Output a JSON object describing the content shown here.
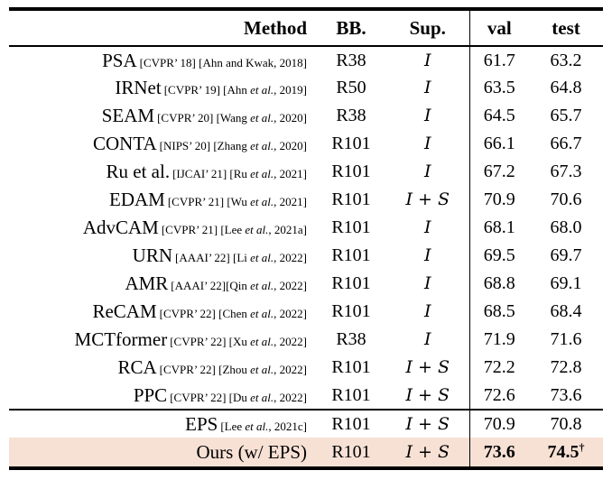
{
  "header": {
    "method": "Method",
    "bb": "BB.",
    "sup": "Sup.",
    "val": "val",
    "test": "test"
  },
  "colors": {
    "highlight_row_bg": "#f7e1d5",
    "rule": "#000000",
    "text": "#000000"
  },
  "table": {
    "sections": [
      {
        "rows": [
          {
            "method": "PSA",
            "cite": [
              {
                "text": "[CVPR’ 18] [Ahn and Kwak, 2018]",
                "italic": false
              }
            ],
            "bb": "R38",
            "sup": "I",
            "val": "61.7",
            "test": "63.2"
          },
          {
            "method": "IRNet",
            "cite": [
              {
                "text": "[CVPR’ 19] [Ahn ",
                "italic": false
              },
              {
                "text": "et al.",
                "italic": true
              },
              {
                "text": ", 2019]",
                "italic": false
              }
            ],
            "bb": "R50",
            "sup": "I",
            "val": "63.5",
            "test": "64.8"
          },
          {
            "method": "SEAM",
            "cite": [
              {
                "text": "[CVPR’ 20] [Wang ",
                "italic": false
              },
              {
                "text": "et al.",
                "italic": true
              },
              {
                "text": ", 2020]",
                "italic": false
              }
            ],
            "bb": "R38",
            "sup": "I",
            "val": "64.5",
            "test": "65.7"
          },
          {
            "method": "CONTA",
            "cite": [
              {
                "text": "[NIPS’ 20] [Zhang ",
                "italic": false
              },
              {
                "text": "et al.",
                "italic": true
              },
              {
                "text": ", 2020]",
                "italic": false
              }
            ],
            "bb": "R101",
            "sup": "I",
            "val": "66.1",
            "test": "66.7"
          },
          {
            "method": "Ru et al.",
            "cite": [
              {
                "text": "[IJCAI’ 21] [Ru ",
                "italic": false
              },
              {
                "text": "et al.",
                "italic": true
              },
              {
                "text": ", 2021]",
                "italic": false
              }
            ],
            "bb": "R101",
            "sup": "I",
            "val": "67.2",
            "test": "67.3"
          },
          {
            "method": "EDAM",
            "cite": [
              {
                "text": "[CVPR’ 21] [Wu ",
                "italic": false
              },
              {
                "text": "et al.",
                "italic": true
              },
              {
                "text": ", 2021]",
                "italic": false
              }
            ],
            "bb": "R101",
            "sup": "I + S",
            "val": "70.9",
            "test": "70.6"
          },
          {
            "method": "AdvCAM",
            "cite": [
              {
                "text": "[CVPR’ 21] [Lee ",
                "italic": false
              },
              {
                "text": "et al.",
                "italic": true
              },
              {
                "text": ", 2021a]",
                "italic": false
              }
            ],
            "bb": "R101",
            "sup": "I",
            "val": "68.1",
            "test": "68.0"
          },
          {
            "method": "URN",
            "cite": [
              {
                "text": "[AAAI’ 22] [Li ",
                "italic": false
              },
              {
                "text": "et al.",
                "italic": true
              },
              {
                "text": ", 2022]",
                "italic": false
              }
            ],
            "bb": "R101",
            "sup": "I",
            "val": "69.5",
            "test": "69.7"
          },
          {
            "method": "AMR",
            "cite": [
              {
                "text": "[AAAI’ 22][Qin ",
                "italic": false
              },
              {
                "text": "et al.",
                "italic": true
              },
              {
                "text": ", 2022]",
                "italic": false
              }
            ],
            "bb": "R101",
            "sup": "I",
            "val": "68.8",
            "test": "69.1"
          },
          {
            "method": "ReCAM",
            "cite": [
              {
                "text": "[CVPR’ 22] [Chen ",
                "italic": false
              },
              {
                "text": "et al.",
                "italic": true
              },
              {
                "text": ", 2022]",
                "italic": false
              }
            ],
            "bb": "R101",
            "sup": "I",
            "val": "68.5",
            "test": "68.4"
          },
          {
            "method": "MCTformer",
            "cite": [
              {
                "text": "[CVPR’ 22] [Xu ",
                "italic": false
              },
              {
                "text": "et al.",
                "italic": true
              },
              {
                "text": ", 2022]",
                "italic": false
              }
            ],
            "bb": "R38",
            "sup": "I",
            "val": "71.9",
            "test": "71.6"
          },
          {
            "method": "RCA",
            "cite": [
              {
                "text": "[CVPR’ 22] [Zhou ",
                "italic": false
              },
              {
                "text": "et al.",
                "italic": true
              },
              {
                "text": ", 2022]",
                "italic": false
              }
            ],
            "bb": "R101",
            "sup": "I + S",
            "val": "72.2",
            "test": "72.8"
          },
          {
            "method": "PPC",
            "cite": [
              {
                "text": "[CVPR’ 22] [Du ",
                "italic": false
              },
              {
                "text": "et al.",
                "italic": true
              },
              {
                "text": ", 2022]",
                "italic": false
              }
            ],
            "bb": "R101",
            "sup": "I + S",
            "val": "72.6",
            "test": "73.6"
          }
        ]
      },
      {
        "rows": [
          {
            "method": "EPS",
            "cite": [
              {
                "text": "[Lee ",
                "italic": false
              },
              {
                "text": "et al.",
                "italic": true
              },
              {
                "text": ", 2021c]",
                "italic": false
              }
            ],
            "bb": "R101",
            "sup": "I + S",
            "val": "70.9",
            "test": "70.8"
          },
          {
            "method": "Ours (w/ EPS)",
            "cite": [],
            "bb": "R101",
            "sup": "I + S",
            "val": "73.6",
            "test": "74.5",
            "test_sup": "†",
            "emphasis": true,
            "highlight": true
          }
        ]
      }
    ]
  }
}
